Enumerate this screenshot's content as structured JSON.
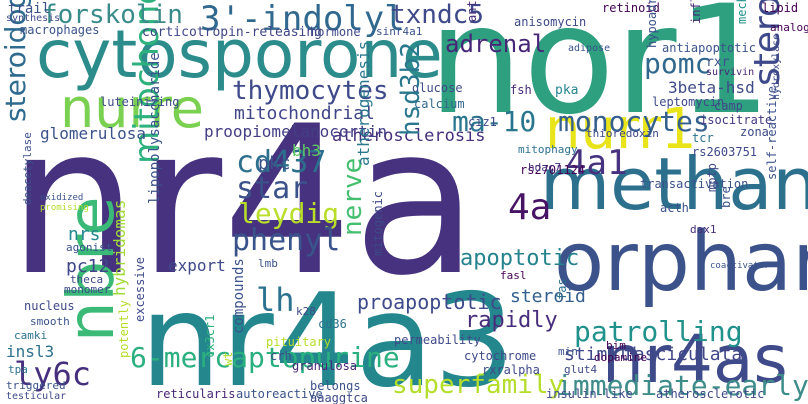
{
  "title": "",
  "words": [
    {
      "text": "nr4a",
      "color": "#46327e"
    },
    {
      "text": "nor1",
      "color": "#2ea07f"
    },
    {
      "text": "nr4a3",
      "color": "#24878e"
    },
    {
      "text": "cytosporone",
      "color": "#2c8c8b"
    },
    {
      "text": "methane",
      "color": "#2d708e"
    },
    {
      "text": "orphan",
      "color": "#3b528b"
    },
    {
      "text": "nurr1",
      "color": "#e8e419"
    },
    {
      "text": "nurre",
      "color": "#7ad151"
    },
    {
      "text": "nbre",
      "color": "#3aba76"
    },
    {
      "text": "nr4as",
      "color": "#3e4a89"
    },
    {
      "text": "3'-indolyl",
      "color": "#31688e"
    },
    {
      "text": "mitochondria",
      "color": "#2db27d"
    },
    {
      "text": "steroidogenic",
      "color": "#3e4989"
    },
    {
      "text": "steroidogenesis",
      "color": "#2f6b8e"
    },
    {
      "text": "forskolin",
      "color": "#3b8b8b"
    },
    {
      "text": "immediate-early",
      "color": "#3f8d8a"
    },
    {
      "text": "6-mercaptopurine",
      "color": "#2ab07f"
    },
    {
      "text": "superfamily",
      "color": "#b5de2b"
    },
    {
      "text": "patrolling",
      "color": "#21918c"
    },
    {
      "text": "ma-10",
      "color": "#2a768e"
    },
    {
      "text": "monocytes",
      "color": "#35608d"
    },
    {
      "text": "thymocytes",
      "color": "#3e4a89"
    },
    {
      "text": "leydig",
      "color": "#b8de29"
    },
    {
      "text": "nerve",
      "color": "#44bf70"
    },
    {
      "text": "txndc5",
      "color": "#3e4989"
    },
    {
      "text": "pomc",
      "color": "#31688e"
    },
    {
      "text": "adrenal",
      "color": "#482677"
    },
    {
      "text": "cd437",
      "color": "#2d708e"
    },
    {
      "text": "phenyl",
      "color": "#3a538b"
    },
    {
      "text": "lh",
      "color": "#2c728e"
    },
    {
      "text": "star",
      "color": "#3b528b"
    },
    {
      "text": "4a",
      "color": "#471365"
    },
    {
      "text": "4a1",
      "color": "#46327e"
    },
    {
      "text": "ly6c",
      "color": "#46307e"
    },
    {
      "text": "hsd3b2",
      "color": "#2a788e"
    },
    {
      "text": "atherosclerosis",
      "color": "#46307e"
    },
    {
      "text": "proopiomelanocortin",
      "color": "#433e85"
    },
    {
      "text": "mitochondrial",
      "color": "#404688"
    },
    {
      "text": "glomerulosa",
      "color": "#3b528b"
    },
    {
      "text": "proapoptotic",
      "color": "#3e4a89"
    },
    {
      "text": "apoptotic",
      "color": "#25838e"
    },
    {
      "text": "rapidly",
      "color": "#472d7b"
    },
    {
      "text": "steroid",
      "color": "#355f8d"
    },
    {
      "text": "stimuli",
      "color": "#3f4788"
    },
    {
      "text": "fasciculata",
      "color": "#404688"
    },
    {
      "text": "pc12",
      "color": "#404688"
    },
    {
      "text": "nrs",
      "color": "#23898e"
    },
    {
      "text": "pkc",
      "color": "#3b528b"
    },
    {
      "text": "bh3",
      "color": "#5ec962"
    },
    {
      "text": "export",
      "color": "#3e4989"
    },
    {
      "text": "lipopolysaccharide",
      "color": "#3b528b"
    },
    {
      "text": "hybridomas",
      "color": "#a2da37"
    },
    {
      "text": "corticotropin-releasing",
      "color": "#3f4788"
    },
    {
      "text": "luteinizing",
      "color": "#3e4a89"
    },
    {
      "text": "3beta-hsd",
      "color": "#3e4a89"
    },
    {
      "text": "hypoadrenal",
      "color": "#3b528b"
    },
    {
      "text": "atherogenesis",
      "color": "#2a788e"
    },
    {
      "text": "mechanistically",
      "color": "#21918c"
    },
    {
      "text": "inflammatory",
      "color": "#472d7b"
    },
    {
      "text": "leptomycin",
      "color": "#3e4a89"
    },
    {
      "text": "antiapoptotic",
      "color": "#3b528b"
    },
    {
      "text": "fsh",
      "color": "#472a7a"
    },
    {
      "text": "pka",
      "color": "#25858e"
    },
    {
      "text": "calcium",
      "color": "#31688e"
    },
    {
      "text": "glucose",
      "color": "#3e4a89"
    },
    {
      "text": "hormone",
      "color": "#3e4989"
    },
    {
      "text": "sinr4a1",
      "color": "#3b528b"
    },
    {
      "text": "macrophages",
      "color": "#3b528b"
    },
    {
      "text": "synthesis",
      "color": "#3e4989"
    },
    {
      "text": "trail",
      "color": "#3b528b"
    },
    {
      "text": "antagonists",
      "color": "#472d7b"
    },
    {
      "text": "anisomycin",
      "color": "#3e4a89"
    },
    {
      "text": "retinoid",
      "color": "#440154"
    },
    {
      "text": "lipid",
      "color": "#440154"
    },
    {
      "text": "analog",
      "color": "#440154"
    },
    {
      "text": "rxr",
      "color": "#3b528b"
    },
    {
      "text": "survivin",
      "color": "#482677"
    },
    {
      "text": "camp",
      "color": "#3e4989"
    },
    {
      "text": "isocitrate",
      "color": "#453882"
    },
    {
      "text": "zona",
      "color": "#3e4a89"
    },
    {
      "text": "tcr",
      "color": "#2c728e"
    },
    {
      "text": "rs2603751",
      "color": "#3e4a89"
    },
    {
      "text": "rs2701124",
      "color": "#440154"
    },
    {
      "text": "transactivation",
      "color": "#3b528b"
    },
    {
      "text": "mitophagy",
      "color": "#2d708e"
    },
    {
      "text": "thioredoxin",
      "color": "#3e4989"
    },
    {
      "text": "hdac7",
      "color": "#46327e"
    },
    {
      "text": "mitogenic",
      "color": "#3e4a89"
    },
    {
      "text": "acth",
      "color": "#3b528b"
    },
    {
      "text": "dax1",
      "color": "#472d7b"
    },
    {
      "text": "mptp",
      "color": "#3e4a89"
    },
    {
      "text": "bre",
      "color": "#3b528b"
    },
    {
      "text": "self-reactive",
      "color": "#3b528b"
    },
    {
      "text": "coactivator",
      "color": "#3b528b"
    },
    {
      "text": "fasl",
      "color": "#440154"
    },
    {
      "text": "cd36",
      "color": "#2c728e"
    },
    {
      "text": "permeability",
      "color": "#3e4a89"
    },
    {
      "text": "pituitary",
      "color": "#b5de2b"
    },
    {
      "text": "crh",
      "color": "#3e4a89"
    },
    {
      "text": "granulosa",
      "color": "#482677"
    },
    {
      "text": "belongs",
      "color": "#3b528b"
    },
    {
      "text": "aaaggtca",
      "color": "#3e4989"
    },
    {
      "text": "compounds",
      "color": "#3b528b"
    },
    {
      "text": "cytochrome",
      "color": "#3e4989"
    },
    {
      "text": "rxralpha",
      "color": "#3e4a89"
    },
    {
      "text": "dopamine",
      "color": "#440154"
    },
    {
      "text": "bim",
      "color": "#440154"
    },
    {
      "text": "min",
      "color": "#3b528b"
    },
    {
      "text": "glut4",
      "color": "#3e4989"
    },
    {
      "text": "fas",
      "color": "#2d708e"
    },
    {
      "text": "insulin-like",
      "color": "#3e4a89"
    },
    {
      "text": "atherosclerotic",
      "color": "#3e4989"
    },
    {
      "text": "reticularis",
      "color": "#482677"
    },
    {
      "text": "autoreactive",
      "color": "#3b528b"
    },
    {
      "text": "insl3",
      "color": "#2d708e"
    },
    {
      "text": "tpa",
      "color": "#2c728e"
    },
    {
      "text": "triggered",
      "color": "#3b528b"
    },
    {
      "text": "testicular",
      "color": "#3e4989"
    },
    {
      "text": "camki",
      "color": "#2c728e"
    },
    {
      "text": "smooth",
      "color": "#3b528b"
    },
    {
      "text": "nucleus",
      "color": "#3e4989"
    },
    {
      "text": "monomer",
      "color": "#3e4a89"
    },
    {
      "text": "deacetylase",
      "color": "#3b528b"
    },
    {
      "text": "agonist",
      "color": "#3b528b"
    },
    {
      "text": "theca",
      "color": "#3e4989"
    },
    {
      "text": "lmb",
      "color": "#3b528b"
    },
    {
      "text": "k28",
      "color": "#3e4a89"
    },
    {
      "text": "excessive",
      "color": "#3e4989"
    },
    {
      "text": "potently",
      "color": "#b5de2b"
    },
    {
      "text": "cx3cr1",
      "color": "#2db27d"
    },
    {
      "text": "wt",
      "color": "#b5de2b"
    },
    {
      "text": "ciz1",
      "color": "#3e4989"
    },
    {
      "text": "adipose",
      "color": "#3b528b"
    },
    {
      "text": "hydroxylase",
      "color": "#3e4a89"
    },
    {
      "text": "promising",
      "color": "#b5de2b"
    },
    {
      "text": "oxidized",
      "color": "#3b528b"
    }
  ]
}
